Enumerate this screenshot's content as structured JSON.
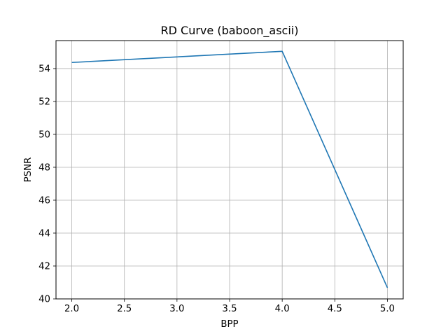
{
  "chart_data": {
    "type": "line",
    "title": "RD Curve (baboon_ascii)",
    "xlabel": "BPP",
    "ylabel": "PSNR",
    "xlim": [
      1.85,
      5.15
    ],
    "ylim": [
      40.0,
      55.7
    ],
    "xticks": [
      2.0,
      2.5,
      3.0,
      3.5,
      4.0,
      4.5,
      5.0
    ],
    "xtick_labels": [
      "2.0",
      "2.5",
      "3.0",
      "3.5",
      "4.0",
      "4.5",
      "5.0"
    ],
    "yticks": [
      40,
      42,
      44,
      46,
      48,
      50,
      52,
      54
    ],
    "ytick_labels": [
      "40",
      "42",
      "44",
      "46",
      "48",
      "50",
      "52",
      "54"
    ],
    "grid": true,
    "series": [
      {
        "color": "#1f77b4",
        "x": [
          2.0,
          4.0,
          5.0
        ],
        "y": [
          54.37,
          55.05,
          40.68
        ]
      }
    ]
  }
}
